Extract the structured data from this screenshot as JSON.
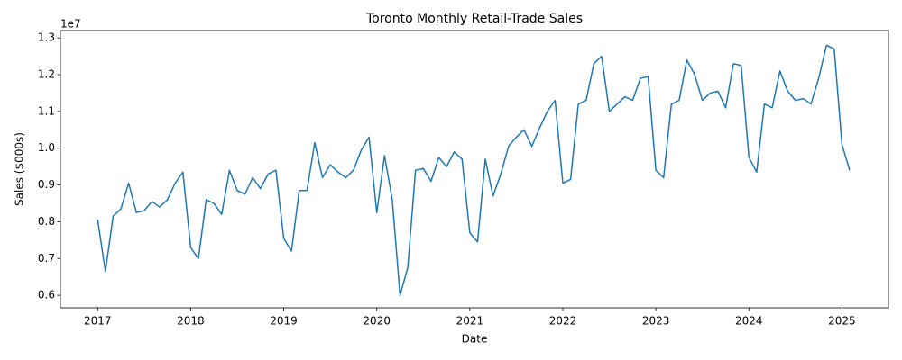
{
  "chart_data": {
    "type": "line",
    "title": "Toronto Monthly Retail-Trade Sales",
    "x_label": "Date",
    "y_label": "Sales ($000s)",
    "y_offset_label": "1e7",
    "x": [
      "2017-01",
      "2017-02",
      "2017-03",
      "2017-04",
      "2017-05",
      "2017-06",
      "2017-07",
      "2017-08",
      "2017-09",
      "2017-10",
      "2017-11",
      "2017-12",
      "2018-01",
      "2018-02",
      "2018-03",
      "2018-04",
      "2018-05",
      "2018-06",
      "2018-07",
      "2018-08",
      "2018-09",
      "2018-10",
      "2018-11",
      "2018-12",
      "2019-01",
      "2019-02",
      "2019-03",
      "2019-04",
      "2019-05",
      "2019-06",
      "2019-07",
      "2019-08",
      "2019-09",
      "2019-10",
      "2019-11",
      "2019-12",
      "2020-01",
      "2020-02",
      "2020-03",
      "2020-04",
      "2020-05",
      "2020-06",
      "2020-07",
      "2020-08",
      "2020-09",
      "2020-10",
      "2020-11",
      "2020-12",
      "2021-01",
      "2021-02",
      "2021-03",
      "2021-04",
      "2021-05",
      "2021-06",
      "2021-07",
      "2021-08",
      "2021-09",
      "2021-10",
      "2021-11",
      "2021-12",
      "2022-01",
      "2022-02",
      "2022-03",
      "2022-04",
      "2022-05",
      "2022-06",
      "2022-07",
      "2022-08",
      "2022-09",
      "2022-10",
      "2022-11",
      "2022-12",
      "2023-01",
      "2023-02",
      "2023-03",
      "2023-04",
      "2023-05",
      "2023-06",
      "2023-07",
      "2023-08",
      "2023-09",
      "2023-10",
      "2023-11",
      "2023-12",
      "2024-01",
      "2024-02",
      "2024-03",
      "2024-04",
      "2024-05",
      "2024-06",
      "2024-07",
      "2024-08",
      "2024-09",
      "2024-10",
      "2024-11",
      "2024-12",
      "2025-01",
      "2025-02"
    ],
    "series": [
      {
        "name": "Sales",
        "color": "#1f77b4",
        "values": [
          0.806,
          0.665,
          0.815,
          0.835,
          0.905,
          0.825,
          0.83,
          0.855,
          0.84,
          0.86,
          0.905,
          0.935,
          0.73,
          0.7,
          0.86,
          0.85,
          0.82,
          0.94,
          0.885,
          0.875,
          0.92,
          0.89,
          0.93,
          0.94,
          0.755,
          0.72,
          0.885,
          0.885,
          1.015,
          0.92,
          0.955,
          0.935,
          0.92,
          0.94,
          0.995,
          1.03,
          0.825,
          0.98,
          0.86,
          0.6,
          0.675,
          0.94,
          0.945,
          0.91,
          0.975,
          0.95,
          0.99,
          0.97,
          0.77,
          0.745,
          0.97,
          0.87,
          0.93,
          1.005,
          1.03,
          1.05,
          1.005,
          1.055,
          1.1,
          1.13,
          0.905,
          0.915,
          1.12,
          1.13,
          1.23,
          1.25,
          1.1,
          1.12,
          1.14,
          1.13,
          1.19,
          1.195,
          0.94,
          0.92,
          1.12,
          1.13,
          1.24,
          1.2,
          1.13,
          1.15,
          1.155,
          1.11,
          1.23,
          1.225,
          0.975,
          0.935,
          1.12,
          1.11,
          1.21,
          1.155,
          1.13,
          1.135,
          1.12,
          1.19,
          1.28,
          1.27,
          1.01,
          0.94
        ]
      }
    ],
    "xlim": [
      2016.6,
      2025.5
    ],
    "xticks": [
      2017,
      2018,
      2019,
      2020,
      2021,
      2022,
      2023,
      2024,
      2025
    ],
    "ylim": [
      0.566,
      1.32
    ],
    "yticks": [
      0.6,
      0.7,
      0.8,
      0.9,
      {
        "value": 1,
        "label": "1.0"
      },
      1.1,
      1.2,
      1.3
    ],
    "grid": false
  }
}
